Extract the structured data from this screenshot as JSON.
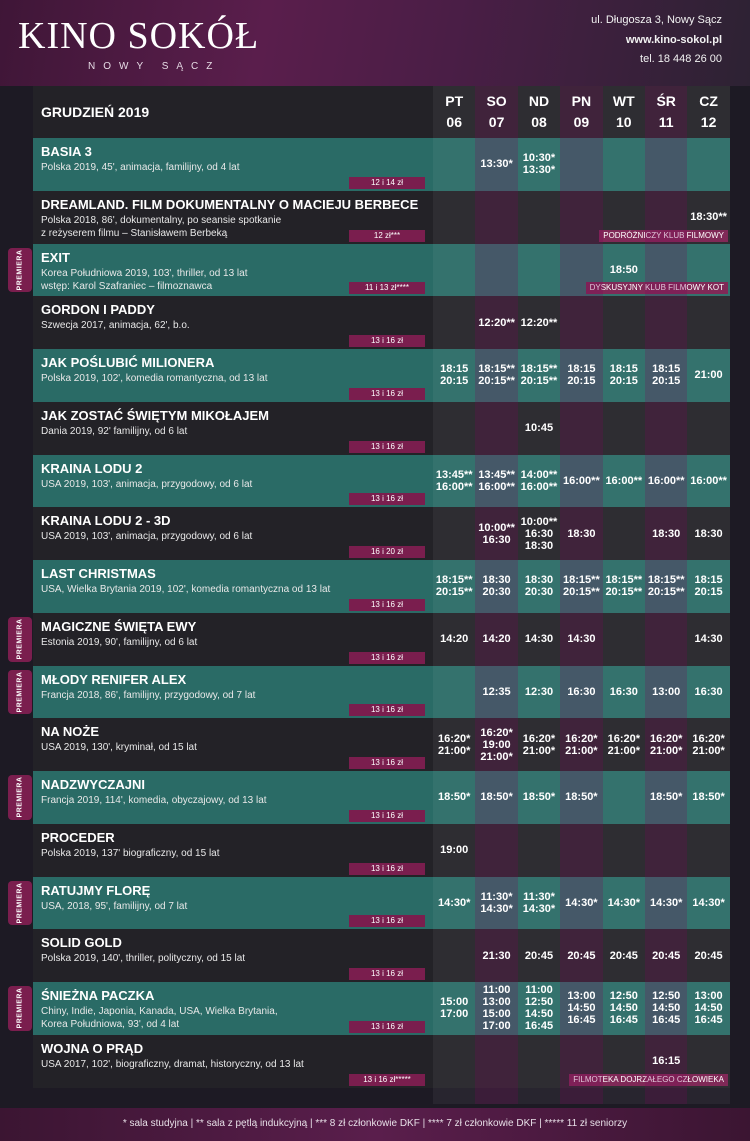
{
  "brand": {
    "name": "KINO SOKÓŁ",
    "city": "NOWY SĄCZ"
  },
  "contact": {
    "address": "ul. Długosza 3, Nowy Sącz",
    "web": "www.kino-sokol.pl",
    "phone": "tel. 18 448 26 00"
  },
  "month": "GRUDZIEŃ 2019",
  "days": [
    {
      "dow": "PT",
      "date": "06"
    },
    {
      "dow": "SO",
      "date": "07"
    },
    {
      "dow": "ND",
      "date": "08"
    },
    {
      "dow": "PN",
      "date": "09"
    },
    {
      "dow": "WT",
      "date": "10"
    },
    {
      "dow": "ŚR",
      "date": "11"
    },
    {
      "dow": "CZ",
      "date": "12"
    }
  ],
  "premiere_label": "PREMIERA",
  "films": [
    {
      "title": "BASIA 3",
      "desc": [
        "Polska 2019, 45', animacja, familijny, od 4 lat"
      ],
      "price": "12 i 14 zł",
      "premiere": false,
      "club": "",
      "times": [
        "",
        "13:30*",
        "10:30*\n13:30*",
        "",
        "",
        "",
        ""
      ]
    },
    {
      "title": "DREAMLAND. FILM DOKUMENTALNY O MACIEJU BERBECE",
      "desc": [
        "Polska 2018, 86', dokumentalny, po seansie spotkanie",
        "z reżyserem filmu – Stanisławem Berbeką"
      ],
      "price": "12 zł***",
      "premiere": false,
      "club": "PODRÓŻNICZY KLUB FILMOWY",
      "times": [
        "",
        "",
        "",
        "",
        "",
        "",
        "18:30**"
      ]
    },
    {
      "title": "EXIT",
      "desc": [
        "Korea Południowa 2019, 103', thriller, od 13 lat",
        "wstęp: Karol Szafraniec – filmoznawca"
      ],
      "price": "11 i 13 zł****",
      "premiere": true,
      "club": "DYSKUSYJNY KLUB FILMOWY KOT",
      "times": [
        "",
        "",
        "",
        "",
        "18:50",
        "",
        ""
      ]
    },
    {
      "title": "GORDON I PADDY",
      "desc": [
        "Szwecja 2017, animacja, 62', b.o."
      ],
      "price": "13 i 16 zł",
      "premiere": false,
      "club": "",
      "times": [
        "",
        "12:20**",
        "12:20**",
        "",
        "",
        "",
        ""
      ]
    },
    {
      "title": "JAK POŚLUBIĆ MILIONERA",
      "desc": [
        "Polska 2019, 102', komedia romantyczna, od 13 lat"
      ],
      "price": "13 i 16 zł",
      "premiere": false,
      "club": "",
      "times": [
        "18:15\n20:15",
        "18:15**\n20:15**",
        "18:15**\n20:15**",
        "18:15\n20:15",
        "18:15\n20:15",
        "18:15\n20:15",
        "21:00"
      ]
    },
    {
      "title": "JAK ZOSTAĆ ŚWIĘTYM MIKOŁAJEM",
      "desc": [
        "Dania 2019, 92' familijny, od 6 lat"
      ],
      "price": "13 i 16 zł",
      "premiere": false,
      "club": "",
      "times": [
        "",
        "",
        "10:45",
        "",
        "",
        "",
        ""
      ]
    },
    {
      "title": "KRAINA LODU 2",
      "desc": [
        "USA 2019, 103', animacja, przygodowy, od 6 lat"
      ],
      "price": "13 i 16 zł",
      "premiere": false,
      "club": "",
      "times": [
        "13:45**\n16:00**",
        "13:45**\n16:00**",
        "14:00**\n16:00**",
        "16:00**",
        "16:00**",
        "16:00**",
        "16:00**"
      ]
    },
    {
      "title": "KRAINA LODU 2 - 3D",
      "desc": [
        "USA 2019, 103', animacja, przygodowy, od 6 lat"
      ],
      "price": "16 i 20 zł",
      "premiere": false,
      "club": "",
      "times": [
        "",
        "10:00**\n16:30",
        "10:00**\n16:30\n18:30",
        "18:30",
        "",
        "18:30",
        "18:30"
      ]
    },
    {
      "title": "LAST CHRISTMAS",
      "desc": [
        "USA, Wielka Brytania 2019, 102', komedia romantyczna od 13 lat"
      ],
      "price": "13 i 16 zł",
      "premiere": false,
      "club": "",
      "times": [
        "18:15**\n20:15**",
        "18:30\n20:30",
        "18:30\n20:30",
        "18:15**\n20:15**",
        "18:15**\n20:15**",
        "18:15**\n20:15**",
        "18:15\n20:15"
      ]
    },
    {
      "title": "MAGICZNE ŚWIĘTA EWY",
      "desc": [
        "Estonia 2019, 90', familijny, od 6 lat"
      ],
      "price": "13 i 16 zł",
      "premiere": true,
      "club": "",
      "times": [
        "14:20",
        "14:20",
        "14:30",
        "14:30",
        "",
        "",
        "14:30"
      ]
    },
    {
      "title": "MŁODY RENIFER ALEX",
      "desc": [
        "Francja 2018, 86', familijny, przygodowy, od 7 lat"
      ],
      "price": "13 i 16 zł",
      "premiere": true,
      "club": "",
      "times": [
        "",
        "12:35",
        "12:30",
        "16:30",
        "16:30",
        "13:00",
        "16:30"
      ]
    },
    {
      "title": "NA NOŻE",
      "desc": [
        "USA 2019, 130', kryminał, od 15 lat"
      ],
      "price": "13 i 16 zł",
      "premiere": false,
      "club": "",
      "times": [
        "16:20*\n21:00*",
        "16:20*\n19:00\n21:00*",
        "16:20*\n21:00*",
        "16:20*\n21:00*",
        "16:20*\n21:00*",
        "16:20*\n21:00*",
        "16:20*\n21:00*"
      ]
    },
    {
      "title": "NADZWYCZAJNI",
      "desc": [
        "Francja 2019, 114', komedia, obyczajowy, od 13 lat"
      ],
      "price": "13 i 16 zł",
      "premiere": true,
      "club": "",
      "times": [
        "18:50*",
        "18:50*",
        "18:50*",
        "18:50*",
        "",
        "18:50*",
        "18:50*"
      ]
    },
    {
      "title": "PROCEDER",
      "desc": [
        "Polska 2019, 137' biograficzny, od 15 lat"
      ],
      "price": "13 i 16 zł",
      "premiere": false,
      "club": "",
      "times": [
        "19:00",
        "",
        "",
        "",
        "",
        "",
        ""
      ]
    },
    {
      "title": "RATUJMY FLORĘ",
      "desc": [
        "USA, 2018, 95', familijny, od 7 lat"
      ],
      "price": "13 i 16 zł",
      "premiere": true,
      "club": "",
      "times": [
        "14:30*",
        "11:30*\n14:30*",
        "11:30*\n14:30*",
        "14:30*",
        "14:30*",
        "14:30*",
        "14:30*"
      ]
    },
    {
      "title": "SOLID GOLD",
      "desc": [
        "Polska 2019, 140', thriller, polityczny, od 15 lat"
      ],
      "price": "13 i 16 zł",
      "premiere": false,
      "club": "",
      "times": [
        "",
        "21:30",
        "20:45",
        "20:45",
        "20:45",
        "20:45",
        "20:45"
      ]
    },
    {
      "title": "ŚNIEŻNA PACZKA",
      "desc": [
        "Chiny, Indie, Japonia, Kanada, USA, Wielka Brytania,",
        "Korea Południowa, 93', od 4 lat"
      ],
      "price": "13 i 16 zł",
      "premiere": true,
      "club": "",
      "times": [
        "15:00\n17:00",
        "11:00\n13:00\n15:00\n17:00",
        "11:00\n12:50\n14:50\n16:45",
        "13:00\n14:50\n16:45",
        "12:50\n14:50\n16:45",
        "12:50\n14:50\n16:45",
        "13:00\n14:50\n16:45"
      ]
    },
    {
      "title": "WOJNA O PRĄD",
      "desc": [
        "USA 2017, 102', biograficzny, dramat, historyczny, od 13 lat"
      ],
      "price": "13 i 16 zł*****",
      "premiere": false,
      "club": "FILMOTEKA DOJRZAŁEGO CZŁOWIEKA",
      "times": [
        "",
        "",
        "",
        "",
        "",
        "16:15",
        ""
      ]
    }
  ],
  "footer": "* sala studyjna  |  ** sala z pętlą indukcyjną  |  *** 8 zł członkowie DKF  |  **** 7 zł członkowie DKF  |  ***** 11 zł seniorzy",
  "colors": {
    "teal": "#2a6b66",
    "dark": "#232227",
    "magenta": "#7a1e4e",
    "header": "#5a1e4c"
  }
}
